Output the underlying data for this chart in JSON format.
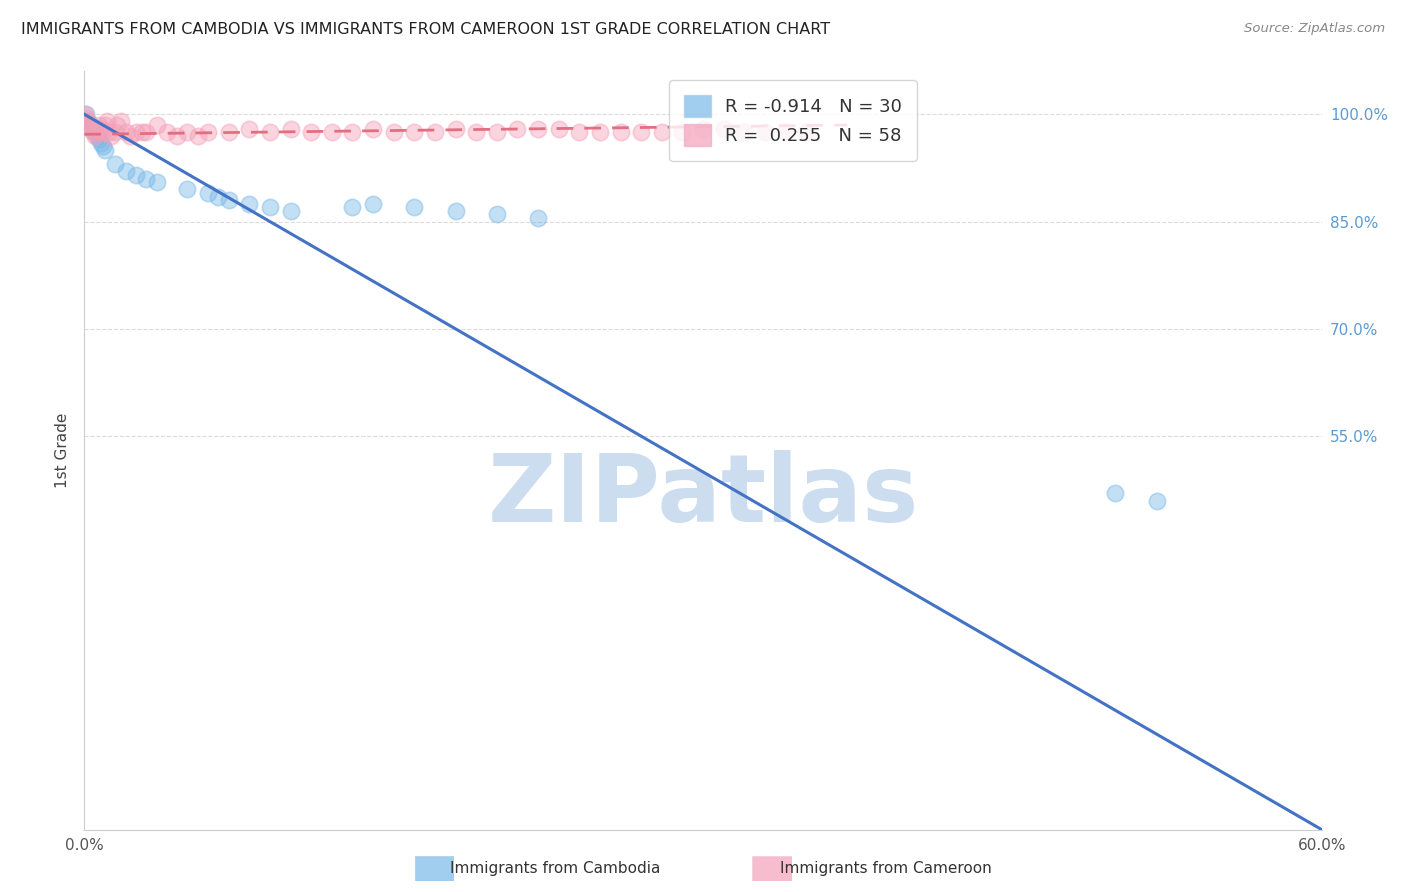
{
  "title": "IMMIGRANTS FROM CAMBODIA VS IMMIGRANTS FROM CAMEROON 1ST GRADE CORRELATION CHART",
  "source": "Source: ZipAtlas.com",
  "ylabel": "1st Grade",
  "watermark": "ZIPatlas",
  "blue_scatter_color": "#7ab8e8",
  "pink_scatter_color": "#f4a0b8",
  "blue_line_color": "#4472c4",
  "pink_line_color": "#e07080",
  "background_color": "#ffffff",
  "grid_color": "#cccccc",
  "title_color": "#222222",
  "right_axis_color": "#5b9bd5",
  "watermark_color": "#ccddf0",
  "legend_R_blue": "-0.914",
  "legend_N_blue": "30",
  "legend_R_pink": "0.255",
  "legend_N_pink": "58",
  "blue_x": [
    0.001,
    0.002,
    0.003,
    0.004,
    0.005,
    0.006,
    0.007,
    0.008,
    0.009,
    0.01,
    0.015,
    0.02,
    0.025,
    0.03,
    0.035,
    0.05,
    0.06,
    0.065,
    0.07,
    0.08,
    0.09,
    0.1,
    0.13,
    0.14,
    0.16,
    0.18,
    0.2,
    0.22,
    0.5,
    0.52
  ],
  "blue_y": [
    1.0,
    0.99,
    0.985,
    0.98,
    0.975,
    0.97,
    0.965,
    0.96,
    0.955,
    0.95,
    0.93,
    0.92,
    0.915,
    0.91,
    0.905,
    0.895,
    0.89,
    0.885,
    0.88,
    0.875,
    0.87,
    0.865,
    0.87,
    0.875,
    0.87,
    0.865,
    0.86,
    0.855,
    0.47,
    0.46
  ],
  "pink_x": [
    0.0005,
    0.001,
    0.0015,
    0.002,
    0.003,
    0.004,
    0.005,
    0.006,
    0.007,
    0.008,
    0.009,
    0.01,
    0.011,
    0.012,
    0.013,
    0.015,
    0.016,
    0.018,
    0.02,
    0.022,
    0.025,
    0.028,
    0.03,
    0.035,
    0.04,
    0.045,
    0.05,
    0.055,
    0.06,
    0.07,
    0.08,
    0.09,
    0.1,
    0.11,
    0.12,
    0.13,
    0.14,
    0.15,
    0.16,
    0.17,
    0.18,
    0.19,
    0.2,
    0.21,
    0.22,
    0.23,
    0.24,
    0.25,
    0.26,
    0.27,
    0.28,
    0.29,
    0.3,
    0.31,
    0.32,
    0.33,
    0.34,
    0.35
  ],
  "pink_y": [
    1.0,
    0.995,
    0.99,
    0.985,
    0.98,
    0.975,
    0.97,
    0.975,
    0.985,
    0.98,
    0.975,
    0.985,
    0.99,
    0.975,
    0.97,
    0.975,
    0.985,
    0.99,
    0.975,
    0.97,
    0.975,
    0.975,
    0.975,
    0.985,
    0.975,
    0.97,
    0.975,
    0.97,
    0.975,
    0.975,
    0.98,
    0.975,
    0.98,
    0.975,
    0.975,
    0.975,
    0.98,
    0.975,
    0.975,
    0.975,
    0.98,
    0.975,
    0.975,
    0.98,
    0.98,
    0.98,
    0.975,
    0.975,
    0.975,
    0.975,
    0.975,
    0.975,
    0.98,
    0.98,
    0.975,
    0.975,
    0.975,
    0.975
  ],
  "blue_line_x0": 0.0,
  "blue_line_y0": 1.0,
  "blue_line_x1": 0.6,
  "blue_line_y1": 0.0,
  "pink_line_x0": 0.0,
  "pink_line_y0": 0.972,
  "pink_line_x1": 0.37,
  "pink_line_y1": 0.985,
  "xlim": [
    0.0,
    0.6
  ],
  "ylim": [
    0.0,
    1.06
  ],
  "yticks": [
    0.55,
    0.7,
    0.85,
    1.0
  ],
  "ytick_labels": [
    "55.0%",
    "70.0%",
    "85.0%",
    "100.0%"
  ],
  "xtick_show": [
    "0.0%",
    "60.0%"
  ],
  "xtick_positions_show": [
    0.0,
    0.6
  ]
}
